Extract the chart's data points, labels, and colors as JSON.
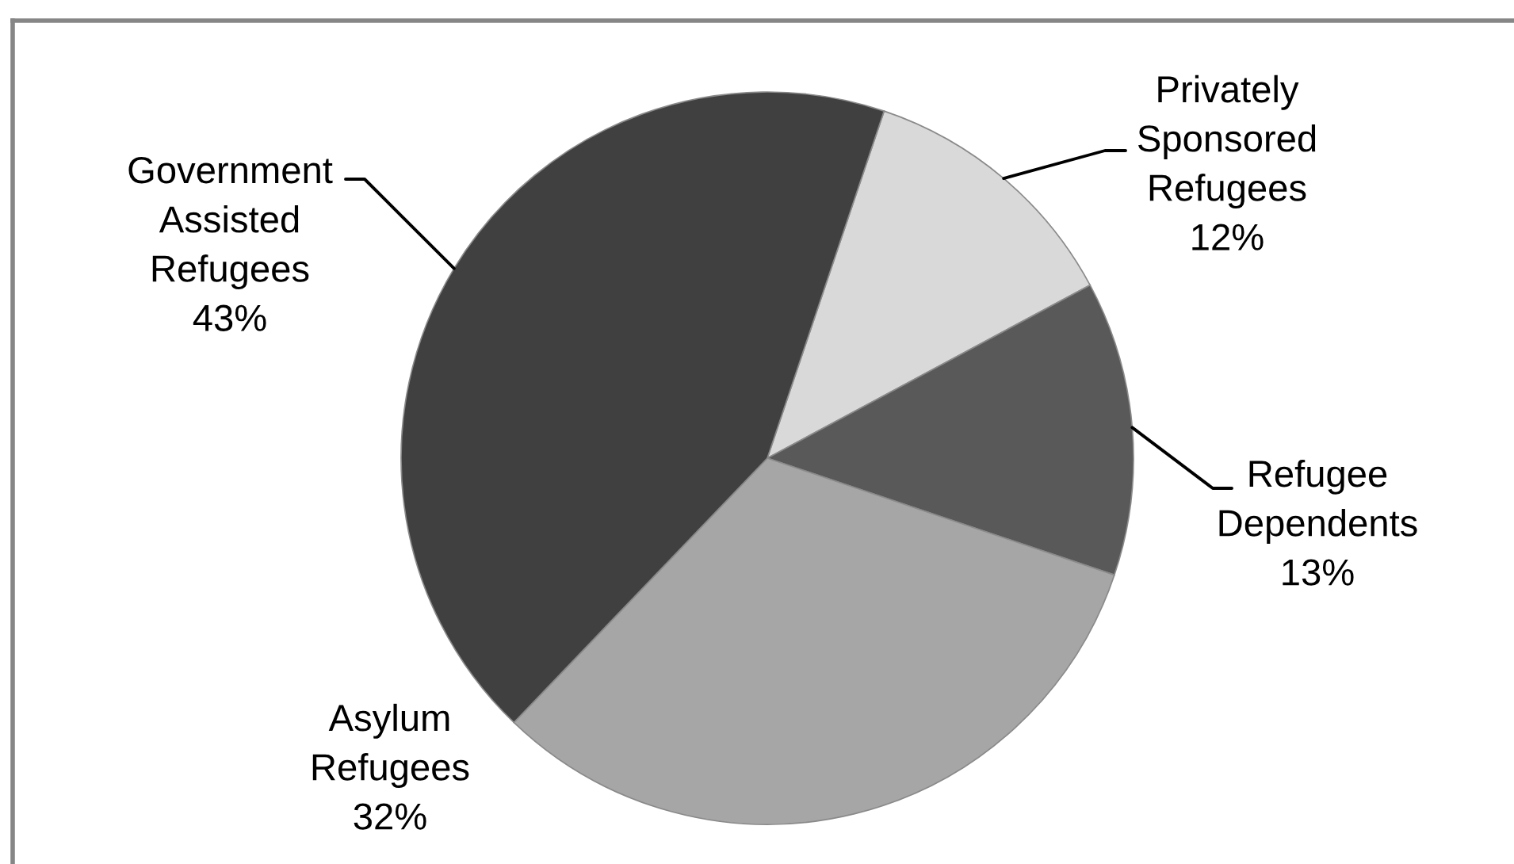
{
  "chart_data": {
    "type": "pie",
    "categories": [
      "Privately\nSponsored\nRefugees",
      "Refugee\nDependents",
      "Asylum\nRefugees",
      "Government\nAssisted\nRefugees"
    ],
    "values": [
      12,
      13,
      32,
      43
    ],
    "value_labels": [
      "12%",
      "13%",
      "32%",
      "43%"
    ],
    "colors": [
      "#d9d9d9",
      "#595959",
      "#a6a6a6",
      "#404040"
    ]
  }
}
